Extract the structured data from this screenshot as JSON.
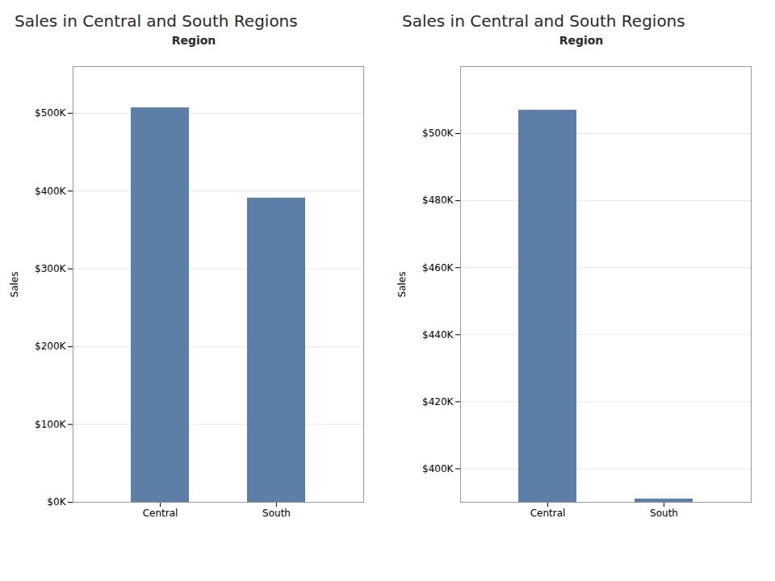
{
  "chart_data": [
    {
      "type": "bar",
      "title": "Sales in Central and South Regions",
      "subtitle": "Region",
      "ylabel": "Sales",
      "categories": [
        "Central",
        "South"
      ],
      "values": [
        507000,
        391000
      ],
      "color": "#5b7fa6",
      "ylim": [
        0,
        560000
      ],
      "yticks": [
        {
          "value": 0,
          "label": "$0K"
        },
        {
          "value": 100000,
          "label": "$100K"
        },
        {
          "value": 200000,
          "label": "$200K"
        },
        {
          "value": 300000,
          "label": "$300K"
        },
        {
          "value": 400000,
          "label": "$400K"
        },
        {
          "value": 500000,
          "label": "$500K"
        }
      ],
      "grid": true
    },
    {
      "type": "bar",
      "title": "Sales in Central and South Regions",
      "subtitle": "Region",
      "ylabel": "Sales",
      "categories": [
        "Central",
        "South"
      ],
      "values": [
        507000,
        391000
      ],
      "color": "#5b7fa6",
      "ylim": [
        390000,
        520000
      ],
      "yticks": [
        {
          "value": 400000,
          "label": "$400K"
        },
        {
          "value": 420000,
          "label": "$420K"
        },
        {
          "value": 440000,
          "label": "$440K"
        },
        {
          "value": 460000,
          "label": "$460K"
        },
        {
          "value": 480000,
          "label": "$480K"
        },
        {
          "value": 500000,
          "label": "$500K"
        }
      ],
      "grid": true
    }
  ]
}
